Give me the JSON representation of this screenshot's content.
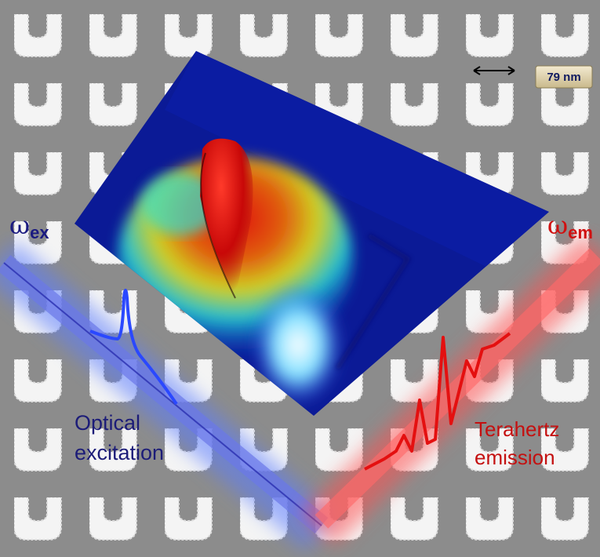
{
  "scale_bar": {
    "label": "79 nm"
  },
  "excitation": {
    "symbol": "ω",
    "subscript": "ex",
    "caption": [
      "Optical",
      "excitation"
    ]
  },
  "emission": {
    "symbol": "ω",
    "subscript": "em",
    "caption": [
      "Terahertz",
      "emission"
    ]
  }
}
